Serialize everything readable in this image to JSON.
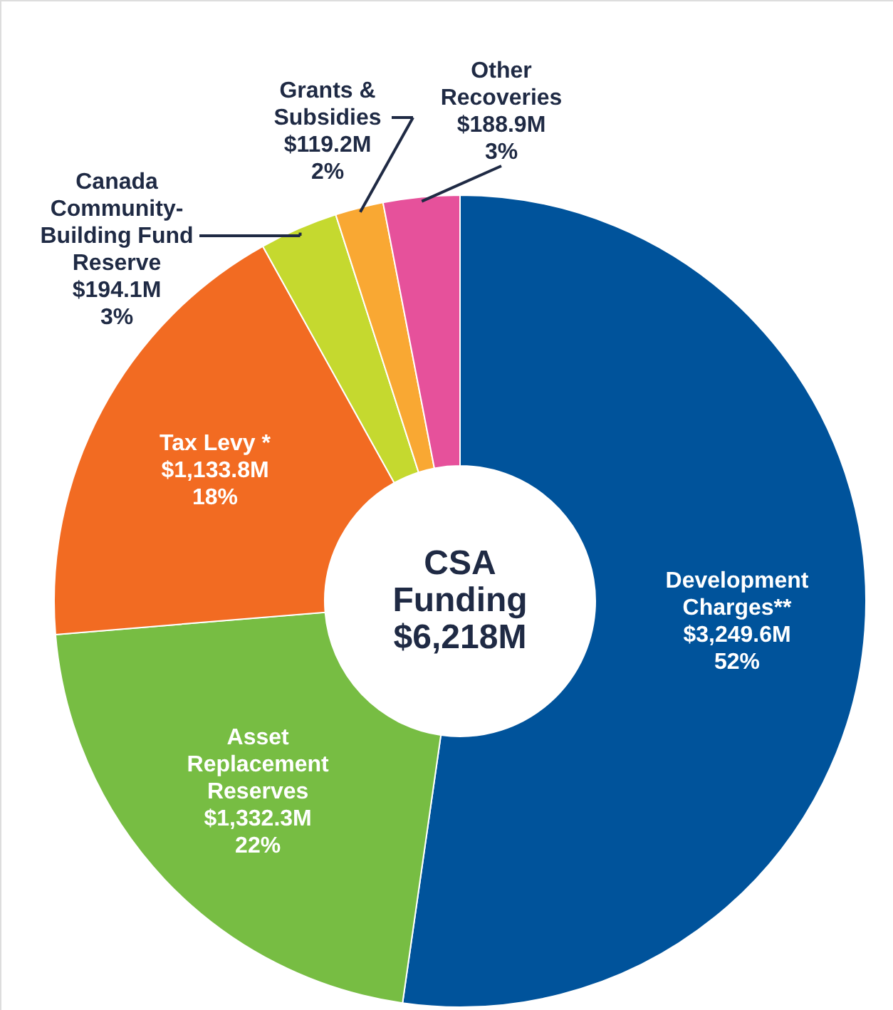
{
  "chart_data": {
    "type": "donut",
    "title": "CSA Funding",
    "annotations": [
      "$6,218M",
      "52%",
      "22%",
      "18%",
      "3%",
      "2%",
      "3%"
    ],
    "categories": [
      "Development Charges**",
      "Asset Replacement Reserves",
      "Tax Levy *",
      "Canada Community-Building Fund Reserve",
      "Grants & Subsidies",
      "Other Recoveries"
    ],
    "values": [
      3249.6,
      1332.3,
      1133.8,
      194.1,
      119.2,
      188.9
    ],
    "colors": [
      "#00539b",
      "#77bd43",
      "#f26b22",
      "#c5d92f",
      "#f9a833",
      "#e6519b"
    ],
    "value_labels": [
      "$3,249.6M",
      "$1,332.3M",
      "$1,133.8M",
      "$194.1M",
      "$119.2M",
      "$188.9M"
    ]
  }
}
